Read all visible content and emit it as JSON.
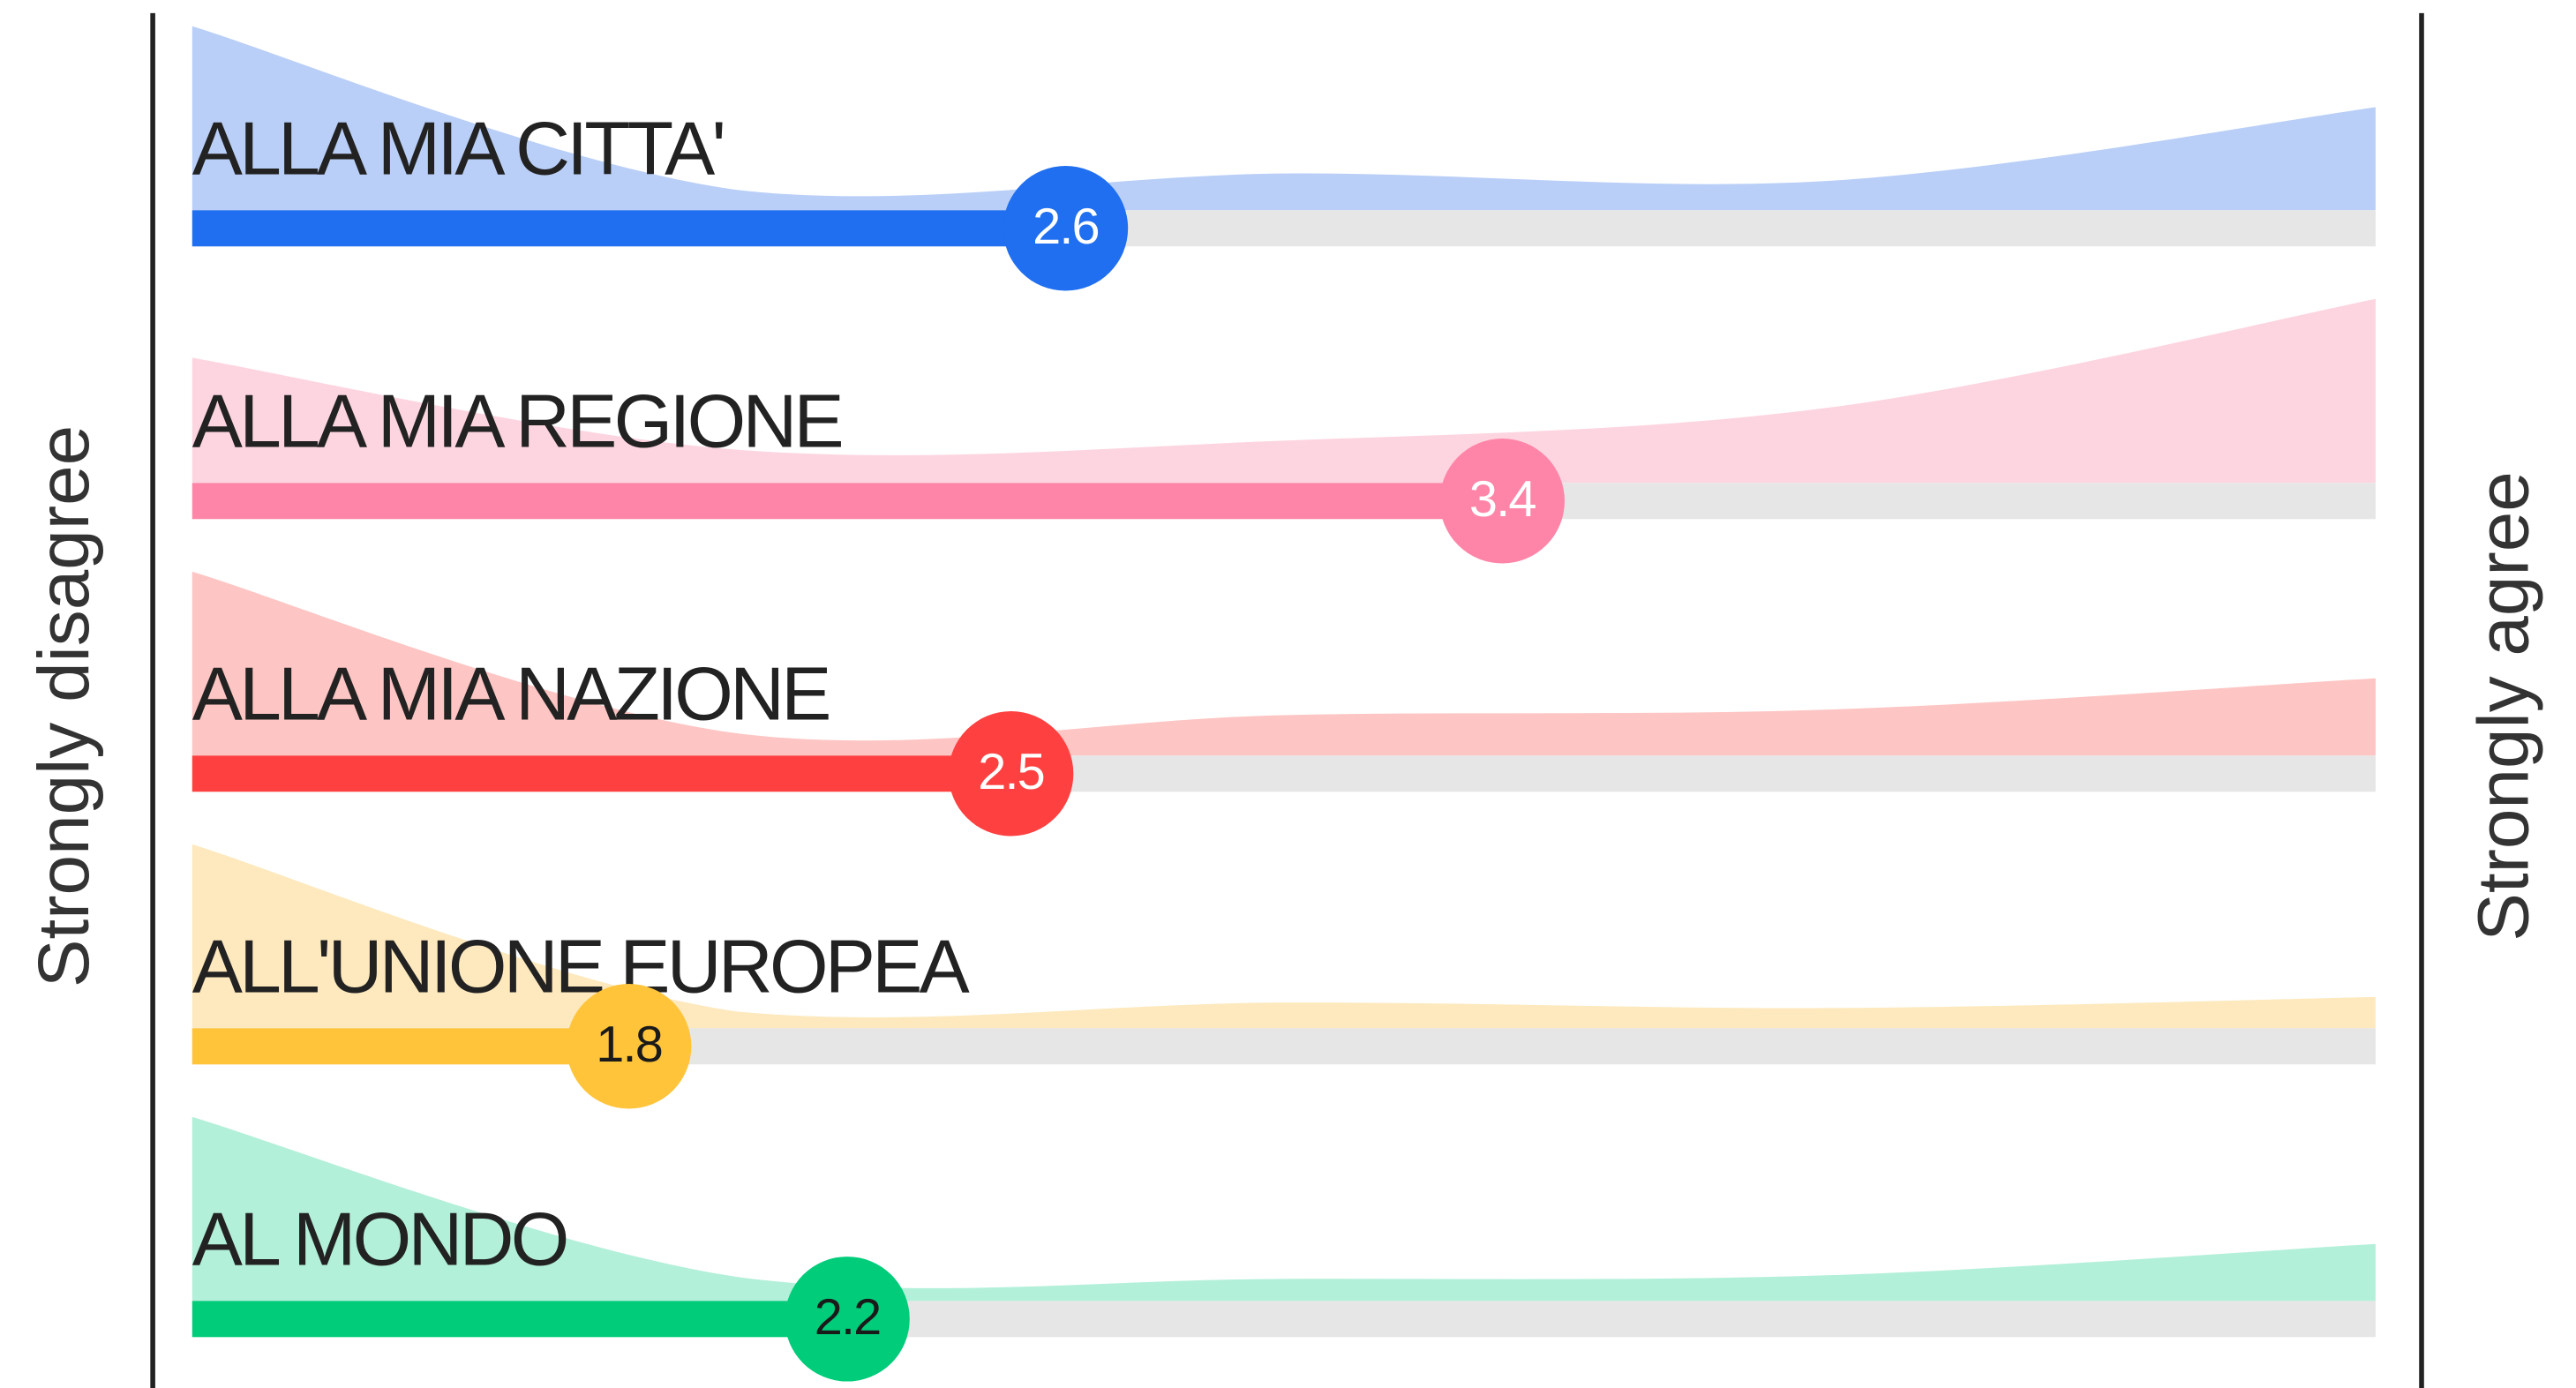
{
  "chart_data": {
    "type": "slider",
    "xlim": [
      1,
      5
    ],
    "left_label": "Strongly disagree",
    "right_label": "Strongly agree",
    "track_color": "#e6e6e6",
    "rows": [
      {
        "name": "ALLA MIA CITTA'",
        "value": 2.6,
        "color": "#1f6ff0",
        "area_color": "#b9cff7",
        "label_color": "#ffffff",
        "distribution": [
          100,
          11,
          20,
          16,
          56
        ]
      },
      {
        "name": "ALLA MIA REGIONE",
        "value": 3.4,
        "color": "#ff85a8",
        "area_color": "#fdd5e0",
        "label_color": "#ffffff",
        "distribution": [
          68,
          18,
          23,
          41,
          100
        ]
      },
      {
        "name": "ALLA MIA NAZIONE",
        "value": 2.5,
        "color": "#ff4040",
        "area_color": "#fdc5c3",
        "label_color": "#ffffff",
        "distribution": [
          100,
          12,
          22,
          25,
          42
        ]
      },
      {
        "name": "ALL'UNIONE EUROPEA",
        "value": 1.8,
        "color": "#ffc43a",
        "area_color": "#fde9bd",
        "label_color": "#1a1a1a",
        "distribution": [
          100,
          9,
          14,
          11,
          17
        ]
      },
      {
        "name": "AL MONDO",
        "value": 2.2,
        "color": "#00cc7a",
        "area_color": "#b3f0d9",
        "label_color": "#1a1a1a",
        "distribution": [
          100,
          13,
          12,
          14,
          31
        ]
      }
    ]
  }
}
